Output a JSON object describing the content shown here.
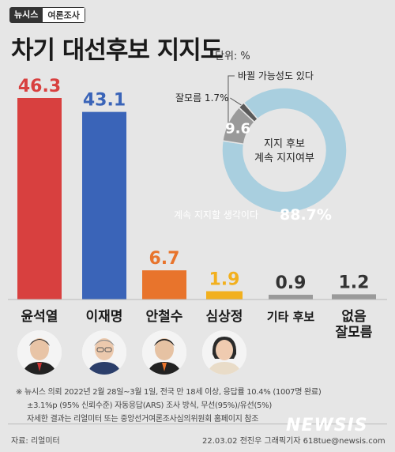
{
  "brand": {
    "name": "뉴시스",
    "section": "여론조사"
  },
  "title": "차기 대선후보 지지도",
  "unit": "단위: %",
  "colors": {
    "yoon": "#d8403f",
    "lee": "#3a64b8",
    "ahn": "#e8742c",
    "sim": "#f2b01e",
    "gray": "#9a9a9a",
    "donut_main": "#a9cfdf",
    "donut_minor": "#9a9a9a",
    "donut_small": "#5a5a5a"
  },
  "chart_data": [
    {
      "type": "bar",
      "categories": [
        "윤석열",
        "이재명",
        "안철수",
        "심상정",
        "기타 후보",
        "없음\n잘모름"
      ],
      "values": [
        46.3,
        43.1,
        6.7,
        1.9,
        0.9,
        1.2
      ],
      "value_labels": [
        "46.3",
        "43.1",
        "6.7",
        "1.9",
        "0.9",
        "1.2"
      ],
      "ylim": [
        0,
        50
      ]
    },
    {
      "type": "pie",
      "center_label": [
        "지지 후보",
        "계속 지지여부"
      ],
      "slices": [
        {
          "label": "계속 지지할 생각이다",
          "value": 88.7,
          "value_label": "88.7%"
        },
        {
          "label": "바뀔 가능성도 있다",
          "value": 9.6,
          "value_label": "9.6"
        },
        {
          "label": "잘모름 1.7%",
          "value": 1.7,
          "value_label": ""
        }
      ]
    }
  ],
  "footnote": [
    "※ 뉴시스 의뢰 2022년 2월 28일~3월 1일, 전국 만 18세 이상, 응답률 10.4% (1007명 완료)",
    "±3.1%p (95% 신뢰수준) 자동응답(ARS) 조사 방식, 무선(95%)/유선(5%)",
    "자세한 결과는 리얼미터 또는 중앙선거여론조사심의위원회 홈페이지 참조"
  ],
  "source": "자료: 리얼미터",
  "credit": "22.03.02 전진우 그래픽기자 618tue@newsis.com",
  "watermark": "NEWSIS"
}
